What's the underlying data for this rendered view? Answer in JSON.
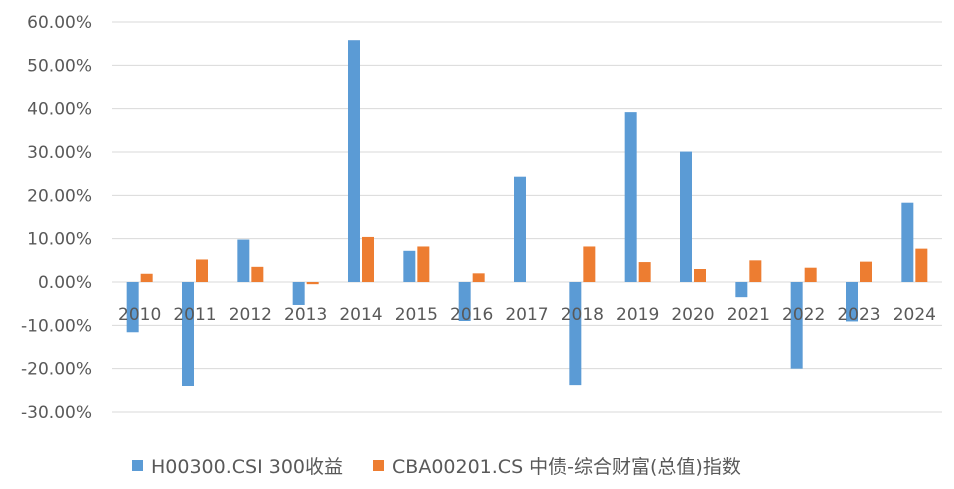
{
  "chart_data": {
    "type": "bar",
    "title": "",
    "xlabel": "",
    "ylabel": "",
    "categories": [
      "2010",
      "2011",
      "2012",
      "2013",
      "2014",
      "2015",
      "2016",
      "2017",
      "2018",
      "2019",
      "2020",
      "2021",
      "2022",
      "2023",
      "2024"
    ],
    "series": [
      {
        "name": "H00300.CSI 300收益",
        "color": "#5B9BD5",
        "values": [
          -11.6,
          -24.0,
          9.8,
          -5.3,
          55.8,
          7.2,
          -9.0,
          24.3,
          -23.8,
          39.2,
          30.1,
          -3.5,
          -20.0,
          -9.1,
          18.3
        ]
      },
      {
        "name": "CBA00201.CS 中债-综合财富(总值)指数",
        "color": "#ED7D31",
        "values": [
          1.9,
          5.2,
          3.5,
          -0.5,
          10.4,
          8.2,
          2.0,
          0.0,
          8.2,
          4.6,
          3.0,
          5.0,
          3.3,
          4.7,
          7.7
        ]
      }
    ],
    "ylim": [
      -30,
      60
    ],
    "yticks": [
      "-30.00%",
      "-20.00%",
      "-10.00%",
      "0.00%",
      "10.00%",
      "20.00%",
      "30.00%",
      "40.00%",
      "50.00%",
      "60.00%"
    ],
    "ytick_values": [
      -30,
      -20,
      -10,
      0,
      10,
      20,
      30,
      40,
      50,
      60
    ],
    "grid": true,
    "legend_position": "bottom"
  }
}
